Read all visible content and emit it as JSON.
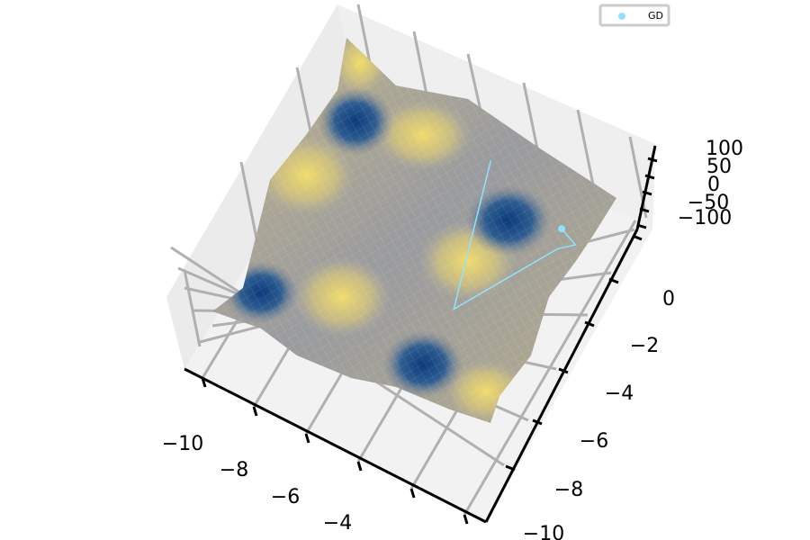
{
  "chart_data": {
    "type": "surface3d",
    "title": "",
    "xlabel": "",
    "ylabel": "",
    "zlabel": "",
    "x_ticks": [
      "−10",
      "−8",
      "−6",
      "−4"
    ],
    "y_ticks": [
      "0",
      "−2",
      "−4",
      "−6",
      "−8",
      "−10"
    ],
    "z_ticks": [
      "100",
      "50",
      "0",
      "−50",
      "−100"
    ],
    "xlim": [
      -11,
      -1
    ],
    "ylim": [
      -10.5,
      1.5
    ],
    "zlim": [
      -120,
      120
    ],
    "grid": true,
    "colormap": "cividis",
    "legend": {
      "placement": "top-right",
      "entries": [
        {
          "name": "GD",
          "color": "#8fe3ff"
        }
      ]
    },
    "series": [
      {
        "name": "GD",
        "type": "trajectory",
        "color": "#8fe3ff",
        "points": [
          {
            "x": -6.3,
            "y": 1.2
          },
          {
            "x": -5.0,
            "y": -4.2
          },
          {
            "x": -3.2,
            "y": -0.6
          },
          {
            "x": -2.8,
            "y": -0.2
          },
          {
            "x": -3.4,
            "y": 0.1
          }
        ]
      }
    ]
  }
}
